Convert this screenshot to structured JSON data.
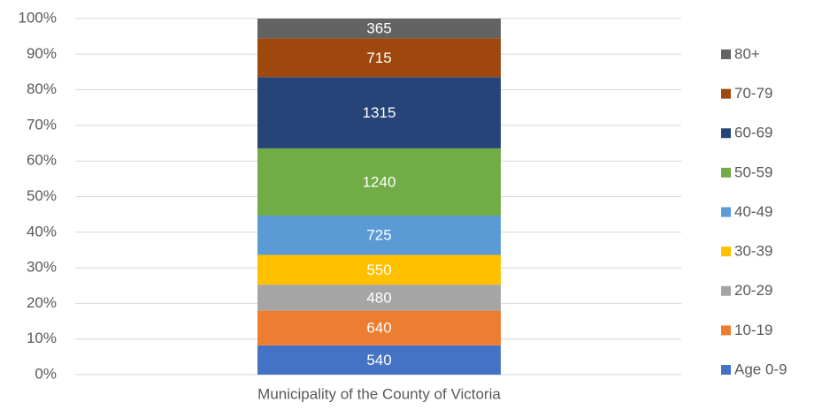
{
  "chart_data": {
    "type": "bar",
    "stacking": "percent",
    "categories": [
      "Municipality of the County of Victoria"
    ],
    "series": [
      {
        "name": "Age 0-9",
        "color": "#4472c4",
        "values": [
          540
        ]
      },
      {
        "name": "10-19",
        "color": "#ed7d31",
        "values": [
          640
        ]
      },
      {
        "name": "20-29",
        "color": "#a5a5a5",
        "values": [
          480
        ]
      },
      {
        "name": "30-39",
        "color": "#ffc000",
        "values": [
          550
        ]
      },
      {
        "name": "40-49",
        "color": "#5b9bd5",
        "values": [
          725
        ]
      },
      {
        "name": "50-59",
        "color": "#70ad47",
        "values": [
          1240
        ]
      },
      {
        "name": "60-69",
        "color": "#264478",
        "values": [
          1315
        ]
      },
      {
        "name": "70-79",
        "color": "#9e480e",
        "values": [
          715
        ]
      },
      {
        "name": "80+",
        "color": "#636363",
        "values": [
          365
        ]
      }
    ],
    "ylim": [
      0,
      100
    ],
    "yticks": [
      {
        "value": 0,
        "label": "0%"
      },
      {
        "value": 10,
        "label": "10%"
      },
      {
        "value": 20,
        "label": "20%"
      },
      {
        "value": 30,
        "label": "30%"
      },
      {
        "value": 40,
        "label": "40%"
      },
      {
        "value": 50,
        "label": "50%"
      },
      {
        "value": 60,
        "label": "60%"
      },
      {
        "value": 70,
        "label": "70%"
      },
      {
        "value": 80,
        "label": "80%"
      },
      {
        "value": 90,
        "label": "90%"
      },
      {
        "value": 100,
        "label": "100%"
      }
    ],
    "grid": true,
    "legend": "right"
  }
}
